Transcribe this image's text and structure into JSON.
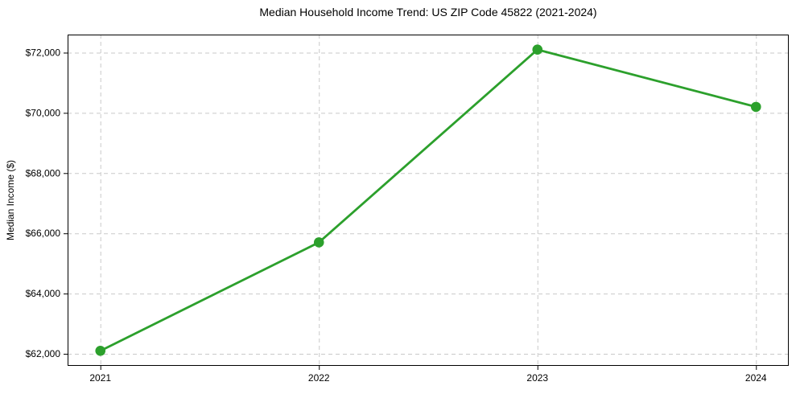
{
  "chart_data": {
    "type": "line",
    "title": "Median Household Income Trend: US ZIP Code 45822 (2021-2024)",
    "xlabel": "",
    "ylabel": "Median Income ($)",
    "x": [
      2021,
      2022,
      2023,
      2024
    ],
    "xticklabels": [
      "2021",
      "2022",
      "2023",
      "2024"
    ],
    "series": [
      {
        "name": "Median Household Income",
        "values": [
          62100,
          65700,
          72100,
          70200
        ],
        "color": "#2ca02c",
        "marker": "circle"
      }
    ],
    "yticks": [
      62000,
      64000,
      66000,
      68000,
      70000,
      72000
    ],
    "yticklabels": [
      "$62,000",
      "$64,000",
      "$66,000",
      "$68,000",
      "$70,000",
      "$72,000"
    ],
    "ylim": [
      61600,
      72600
    ],
    "xlim": [
      2020.85,
      2024.15
    ],
    "grid": true,
    "grid_style": "dashed",
    "legend": false,
    "colors": {
      "line": "#2ca02c",
      "grid": "#c9c9c9",
      "spine": "#000000",
      "text": "#000000",
      "background": "#ffffff"
    }
  }
}
